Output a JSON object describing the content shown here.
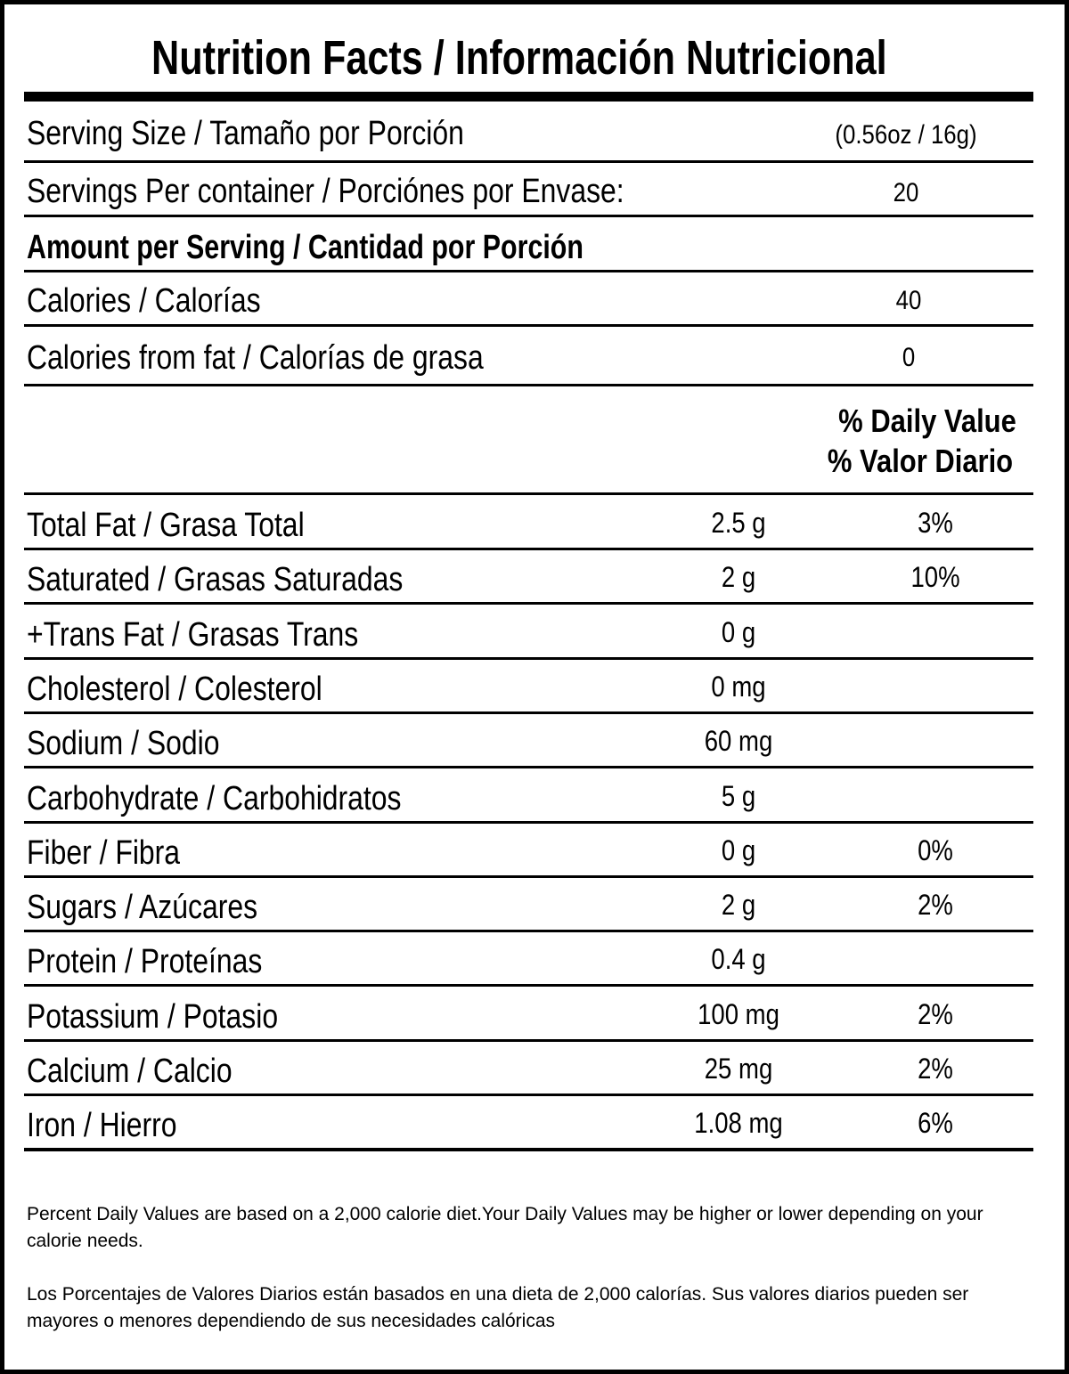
{
  "header": {
    "title": "Nutrition Facts / Información Nutricional"
  },
  "serving": [
    {
      "label": "Serving Size / Tamaño por Porción",
      "value": "(0.56oz / 16g)"
    },
    {
      "label": "Servings Per container / Porciónes por Envase:",
      "value": "20"
    }
  ],
  "amount_header": "Amount per Serving / Cantidad por Porción",
  "calories": [
    {
      "label": "Calories / Calorías",
      "value": "40"
    },
    {
      "label": "Calories from fat / Calorías de grasa",
      "value": "0"
    }
  ],
  "dv_header": [
    "% Daily Value",
    "% Valor Diario"
  ],
  "nutrients": [
    {
      "name": "Total Fat / Grasa Total",
      "amount": "2.5 g",
      "dv": "3%"
    },
    {
      "name": "Saturated / Grasas Saturadas",
      "amount": "2 g",
      "dv": "10%"
    },
    {
      "name": "+Trans Fat / Grasas Trans",
      "amount": "0 g"
    },
    {
      "name": "Cholesterol / Colesterol",
      "amount": "0 mg"
    },
    {
      "name": "Sodium / Sodio",
      "amount": "60 mg"
    },
    {
      "name": "Carbohydrate / Carbohidratos",
      "amount": "5 g"
    },
    {
      "name": "Fiber / Fibra",
      "amount": "0 g",
      "dv": "0%"
    },
    {
      "name": "Sugars / Azúcares",
      "amount": "2 g",
      "dv": "2%"
    },
    {
      "name": "Protein / Proteínas",
      "amount": "0.4 g"
    },
    {
      "name": "Potassium / Potasio",
      "amount": "100 mg",
      "dv": "2%"
    },
    {
      "name": "Calcium / Calcio",
      "amount": "25 mg",
      "dv": "2%"
    },
    {
      "name": "Iron / Hierro",
      "amount": "1.08 mg",
      "dv": "6%"
    }
  ],
  "footnotes": [
    "Percent Daily Values are based on a 2,000 calorie diet.Your Daily Values may be higher or lower depending on your calorie needs.",
    "Los Porcentajes de Valores Diarios están basados en una dieta de 2,000 calorías. Sus valores diarios pueden ser mayores o menores dependiendo de sus necesidades calóricas"
  ]
}
